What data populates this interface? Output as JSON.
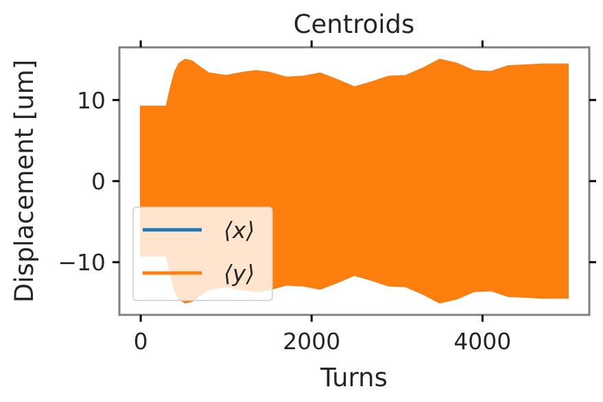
{
  "chart_data": {
    "type": "line",
    "title": "Centroids",
    "xlabel": "Turns",
    "ylabel": "Displacement [um]",
    "xlim": [
      -250,
      5250
    ],
    "ylim": [
      -16.5,
      16.5
    ],
    "x_ticks": [
      0,
      2000,
      4000
    ],
    "x_tick_labels": [
      "0",
      "2000",
      "4000"
    ],
    "y_ticks": [
      -10,
      0,
      10
    ],
    "y_tick_labels": [
      "−10",
      "0",
      "10"
    ],
    "grid": false,
    "legend_position": "lower-left",
    "series": [
      {
        "name": "⟨x⟩",
        "color": "#1f77b4",
        "envelope": {
          "turns": [
            0,
            200,
            300,
            350,
            400,
            450,
            520,
            600,
            700,
            800,
            1000,
            1200,
            1350,
            1500,
            1700,
            1900,
            2100,
            2300,
            2500,
            2700,
            2900,
            3100,
            3300,
            3500,
            3700,
            3900,
            4100,
            4300,
            4500,
            4700,
            5000
          ],
          "amplitude": [
            9.2,
            9.2,
            9.2,
            11.5,
            13.5,
            14.5,
            15.0,
            14.8,
            14.0,
            13.3,
            13.0,
            13.4,
            13.6,
            13.4,
            12.8,
            12.9,
            13.3,
            12.5,
            11.6,
            12.2,
            12.9,
            13.0,
            13.9,
            15.0,
            14.5,
            13.6,
            13.5,
            14.2,
            14.3,
            14.4,
            14.4
          ]
        }
      },
      {
        "name": "⟨y⟩",
        "color": "#ff7f0e",
        "envelope": {
          "turns": [
            0,
            200,
            300,
            350,
            400,
            450,
            520,
            600,
            700,
            800,
            1000,
            1200,
            1350,
            1500,
            1700,
            1900,
            2100,
            2300,
            2500,
            2700,
            2900,
            3100,
            3300,
            3500,
            3700,
            3900,
            4100,
            4300,
            4500,
            4700,
            5000
          ],
          "amplitude": [
            9.2,
            9.2,
            9.2,
            11.5,
            13.5,
            14.5,
            15.0,
            14.8,
            14.0,
            13.3,
            13.0,
            13.4,
            13.6,
            13.4,
            12.8,
            12.9,
            13.3,
            12.5,
            11.6,
            12.2,
            12.9,
            13.0,
            13.9,
            15.0,
            14.5,
            13.6,
            13.5,
            14.2,
            14.3,
            14.4,
            14.4
          ]
        }
      }
    ]
  },
  "colors": {
    "frame": "#808080",
    "tick": "#000000",
    "text": "#262626"
  }
}
